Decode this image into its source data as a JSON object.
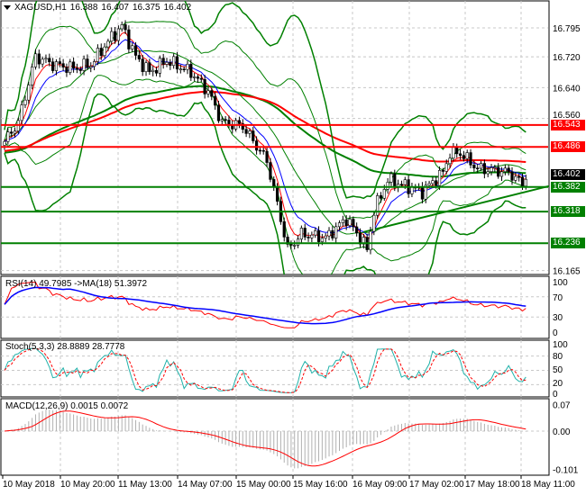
{
  "header": {
    "symbol": "XAGUSD,H1",
    "open": "16.388",
    "high": "16.407",
    "low": "16.375",
    "close": "16.402"
  },
  "colors": {
    "bull": "#ffffff",
    "bear": "#000000",
    "band": "#008000",
    "resistance": "#ff0000",
    "support": "#008000",
    "ma_fast": "#0000ff",
    "ma_slow": "#ff0000",
    "stoch_main": "#20b2aa"
  },
  "chart_data": {
    "type": "candlestick",
    "title": "XAGUSD,H1",
    "price_ticks": [
      "16.795",
      "16.720",
      "16.640",
      "16.560",
      "16.165"
    ],
    "price_range": [
      16.165,
      16.795
    ],
    "waypoints": [
      [
        0,
        16.5
      ],
      [
        4,
        16.55
      ],
      [
        9,
        16.72
      ],
      [
        14,
        16.7
      ],
      [
        20,
        16.69
      ],
      [
        25,
        16.7
      ],
      [
        30,
        16.76
      ],
      [
        34,
        16.8
      ],
      [
        38,
        16.72
      ],
      [
        42,
        16.68
      ],
      [
        47,
        16.71
      ],
      [
        54,
        16.68
      ],
      [
        59,
        16.63
      ],
      [
        63,
        16.55
      ],
      [
        69,
        16.54
      ],
      [
        76,
        16.45
      ],
      [
        80,
        16.3
      ],
      [
        82,
        16.22
      ],
      [
        86,
        16.26
      ],
      [
        93,
        16.25
      ],
      [
        99,
        16.3
      ],
      [
        103,
        16.25
      ],
      [
        105,
        16.22
      ],
      [
        107,
        16.32
      ],
      [
        111,
        16.4
      ],
      [
        121,
        16.37
      ],
      [
        127,
        16.42
      ],
      [
        129,
        16.47
      ],
      [
        132,
        16.47
      ],
      [
        137,
        16.43
      ],
      [
        146,
        16.42
      ],
      [
        150,
        16.39
      ],
      [
        151,
        16.402
      ]
    ],
    "levels": [
      {
        "value": 16.543,
        "label": "16.543",
        "type": "resistance"
      },
      {
        "value": 16.486,
        "label": "16.486",
        "type": "resistance"
      },
      {
        "value": 16.382,
        "label": "16.382",
        "type": "support"
      },
      {
        "value": 16.318,
        "label": "16.318",
        "type": "support"
      },
      {
        "value": 16.236,
        "label": "16.236",
        "type": "support"
      }
    ],
    "current_price": "16.402",
    "trendline": [
      [
        104,
        16.265
      ],
      [
        158,
        16.385
      ]
    ],
    "x_labels": [
      "10 May 2018",
      "10 May 20:00",
      "11 May 13:00",
      "14 May 07:00",
      "15 May 00:00",
      "15 May 16:00",
      "16 May 09:00",
      "17 May 02:00",
      "17 May 18:00",
      "18 May 11:00"
    ],
    "indicators": {
      "rsi": {
        "label": "RSI(14) 49.7985  ->MA(18) 51.3972",
        "ticks": [
          "100",
          "70",
          "30",
          "0"
        ]
      },
      "stoch": {
        "label": "Stoch(5,3,3) 28.8889 28.7778",
        "ticks": [
          "100",
          "80",
          "50",
          "20",
          "0"
        ]
      },
      "macd": {
        "label": "MACD(12,26,9) 0.0015 0.0072",
        "ticks": [
          "0.07",
          "0.00",
          "-0.101"
        ]
      }
    }
  }
}
